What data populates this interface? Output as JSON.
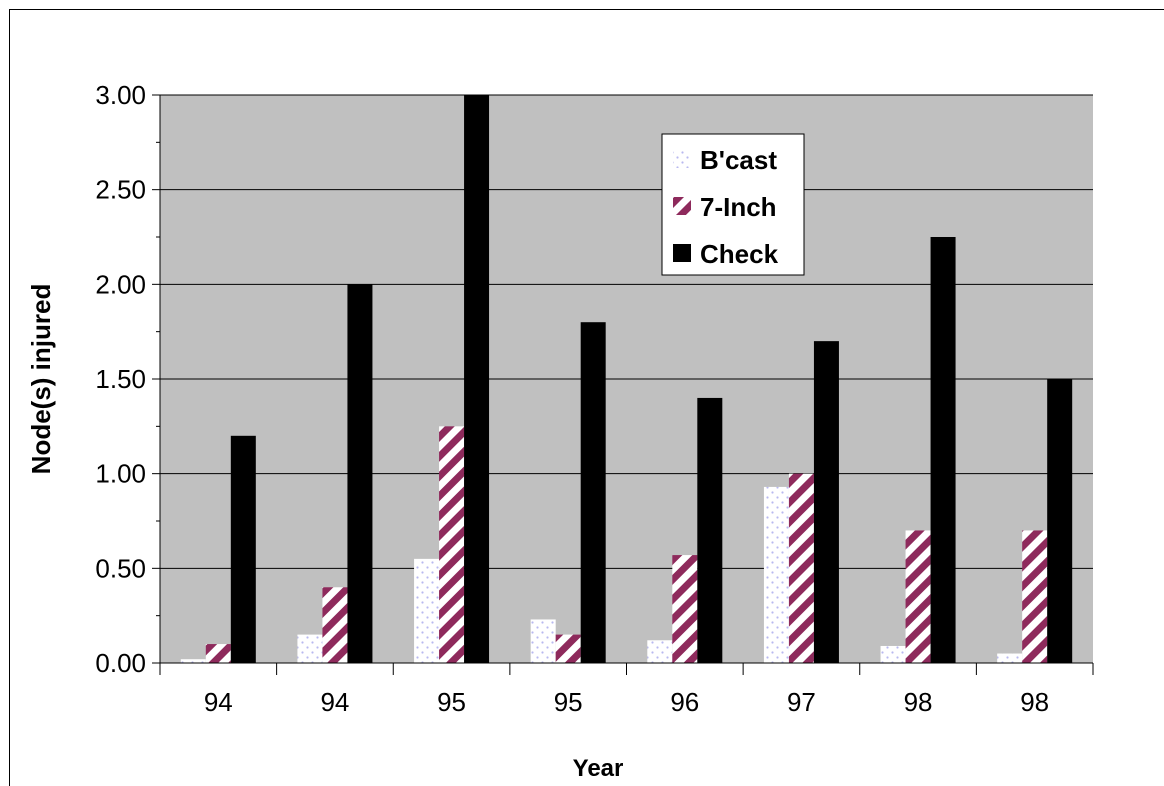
{
  "chart_data": {
    "type": "bar",
    "title": "",
    "xlabel": "Year",
    "ylabel": "Node(s) injured",
    "categories": [
      "94",
      "94",
      "95",
      "95",
      "96",
      "97",
      "98",
      "98"
    ],
    "series": [
      {
        "name": "B'cast",
        "values": [
          0.02,
          0.15,
          0.55,
          0.23,
          0.12,
          0.93,
          0.09,
          0.05
        ]
      },
      {
        "name": "7-Inch",
        "values": [
          0.1,
          0.4,
          1.25,
          0.15,
          0.57,
          1.0,
          0.7,
          0.7
        ]
      },
      {
        "name": "Check",
        "values": [
          1.2,
          2.0,
          3.0,
          1.8,
          1.4,
          1.7,
          2.25,
          1.5
        ]
      }
    ],
    "ylim": [
      0,
      3
    ],
    "yticks": [
      "0.00",
      "0.50",
      "1.00",
      "1.50",
      "2.00",
      "2.50",
      "3.00"
    ],
    "grid": true,
    "legend_position": "top-center",
    "colors": {
      "plot_background": "#c0c0c0",
      "bcast_fill": "#ffffff",
      "bcast_dots": "#b8b8f0",
      "inch_fill": "#ffffff",
      "inch_stripe": "#8e2a5c",
      "check_fill": "#000000"
    }
  }
}
